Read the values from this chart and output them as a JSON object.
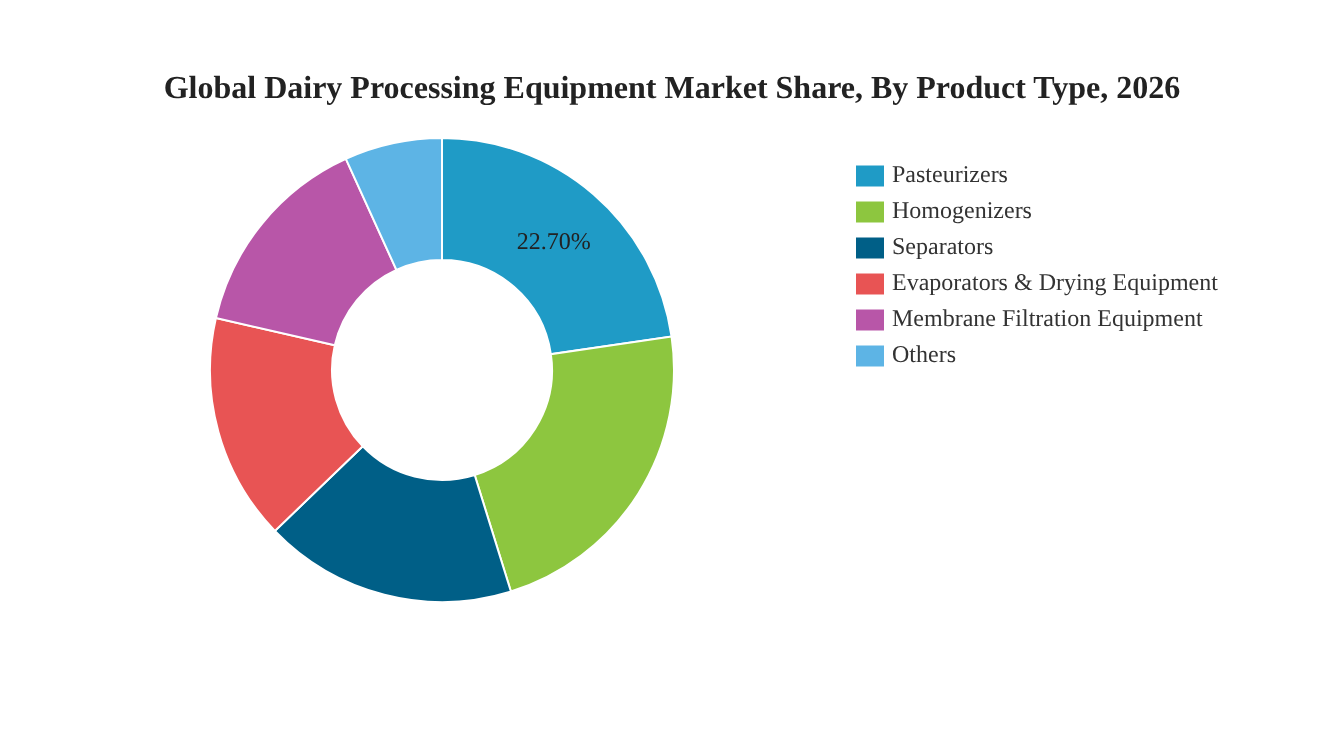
{
  "chart_data": {
    "type": "donut",
    "title": "Global Dairy Processing Equipment Market Share, By Product Type, 2026",
    "categories": [
      "Pasteurizers",
      "Homogenizers",
      "Separators",
      "Evaporators & Drying Equipment",
      "Membrane Filtration Equipment",
      "Others"
    ],
    "values": [
      22.7,
      22.5,
      17.6,
      15.8,
      14.6,
      6.8
    ],
    "value_labels": [
      "22.70%",
      null,
      null,
      null,
      null,
      null
    ],
    "colors": [
      "#1f9bc6",
      "#8dc63f",
      "#005f87",
      "#e85454",
      "#b856a8",
      "#5db4e5"
    ],
    "legend": "right"
  }
}
